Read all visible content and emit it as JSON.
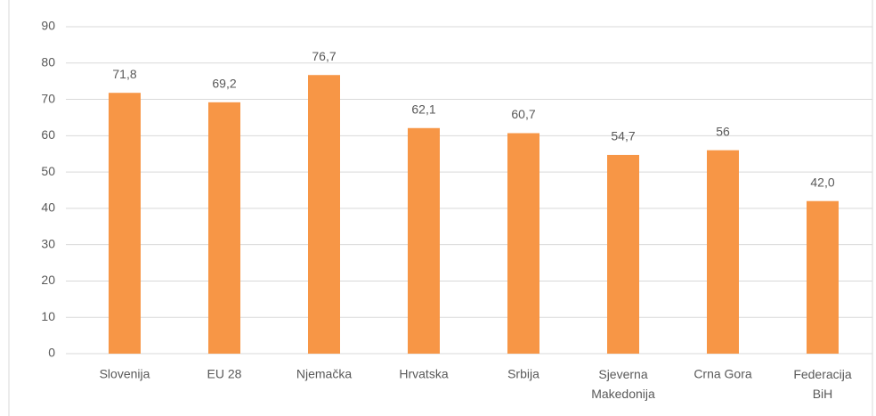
{
  "chart_data": {
    "type": "bar",
    "categories": [
      "Slovenija",
      "EU 28",
      "Njemačka",
      "Hrvatska",
      "Srbija",
      "Sjeverna Makedonija",
      "Crna Gora",
      "Federacija BiH"
    ],
    "values": [
      71.8,
      69.2,
      76.7,
      62.1,
      60.7,
      54.7,
      56,
      42.0
    ],
    "value_labels": [
      "71,8",
      "69,2",
      "76,7",
      "62,1",
      "60,7",
      "54,7",
      "56",
      "42,0"
    ],
    "color": "#f79646",
    "ylim": [
      0,
      90
    ],
    "yticks": [
      0,
      10,
      20,
      30,
      40,
      50,
      60,
      70,
      80,
      90
    ],
    "grid": true
  }
}
